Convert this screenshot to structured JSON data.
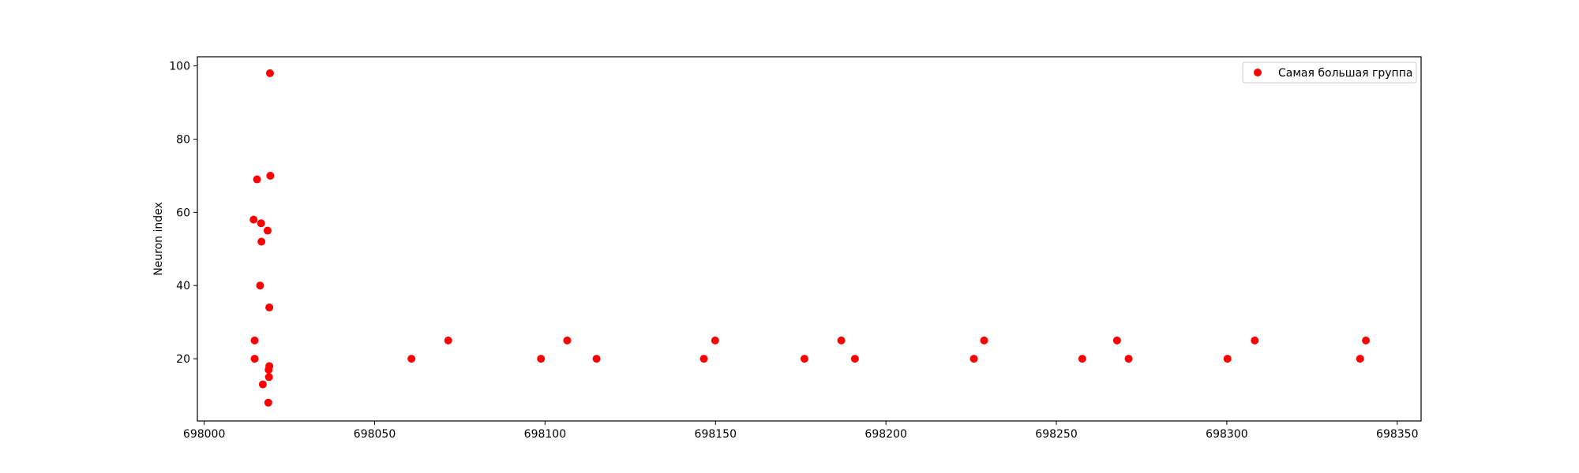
{
  "chart_data": {
    "type": "scatter",
    "title": "",
    "xlabel": "",
    "ylabel": "Neuron index",
    "xlim": [
      697998,
      698357
    ],
    "ylim": [
      3,
      102.5
    ],
    "x_ticks": [
      698000,
      698050,
      698100,
      698150,
      698200,
      698250,
      698300,
      698350
    ],
    "x_tick_labels": [
      "698000",
      "698050",
      "698100",
      "698150",
      "698200",
      "698250",
      "698300",
      "698350"
    ],
    "y_ticks": [
      20,
      40,
      60,
      80,
      100
    ],
    "y_tick_labels": [
      "20",
      "40",
      "60",
      "80",
      "100"
    ],
    "grid": false,
    "legend": {
      "position": "top-right",
      "entries": [
        "Самая большая группа"
      ]
    },
    "series": [
      {
        "name": "Самая большая группа",
        "color": "#ff0000",
        "marker": "circle",
        "points": [
          {
            "x": 698014.5,
            "y": 58
          },
          {
            "x": 698014.8,
            "y": 25
          },
          {
            "x": 698014.8,
            "y": 20
          },
          {
            "x": 698015.5,
            "y": 69
          },
          {
            "x": 698016.4,
            "y": 40
          },
          {
            "x": 698016.7,
            "y": 57
          },
          {
            "x": 698016.8,
            "y": 52
          },
          {
            "x": 698017.2,
            "y": 13
          },
          {
            "x": 698018.6,
            "y": 55
          },
          {
            "x": 698018.8,
            "y": 8
          },
          {
            "x": 698018.9,
            "y": 17
          },
          {
            "x": 698019.0,
            "y": 15
          },
          {
            "x": 698019.1,
            "y": 18
          },
          {
            "x": 698019.1,
            "y": 34
          },
          {
            "x": 698019.3,
            "y": 98
          },
          {
            "x": 698019.4,
            "y": 70
          },
          {
            "x": 698060.8,
            "y": 20
          },
          {
            "x": 698071.6,
            "y": 25
          },
          {
            "x": 698098.8,
            "y": 20
          },
          {
            "x": 698106.5,
            "y": 25
          },
          {
            "x": 698115.1,
            "y": 20
          },
          {
            "x": 698146.6,
            "y": 20
          },
          {
            "x": 698149.9,
            "y": 25
          },
          {
            "x": 698176.1,
            "y": 20
          },
          {
            "x": 698186.9,
            "y": 25
          },
          {
            "x": 698190.9,
            "y": 20
          },
          {
            "x": 698225.8,
            "y": 20
          },
          {
            "x": 698228.8,
            "y": 25
          },
          {
            "x": 698257.6,
            "y": 20
          },
          {
            "x": 698267.8,
            "y": 25
          },
          {
            "x": 698271.2,
            "y": 20
          },
          {
            "x": 698300.2,
            "y": 20
          },
          {
            "x": 698308.2,
            "y": 25
          },
          {
            "x": 698339.1,
            "y": 20
          },
          {
            "x": 698340.8,
            "y": 25
          }
        ]
      }
    ]
  }
}
